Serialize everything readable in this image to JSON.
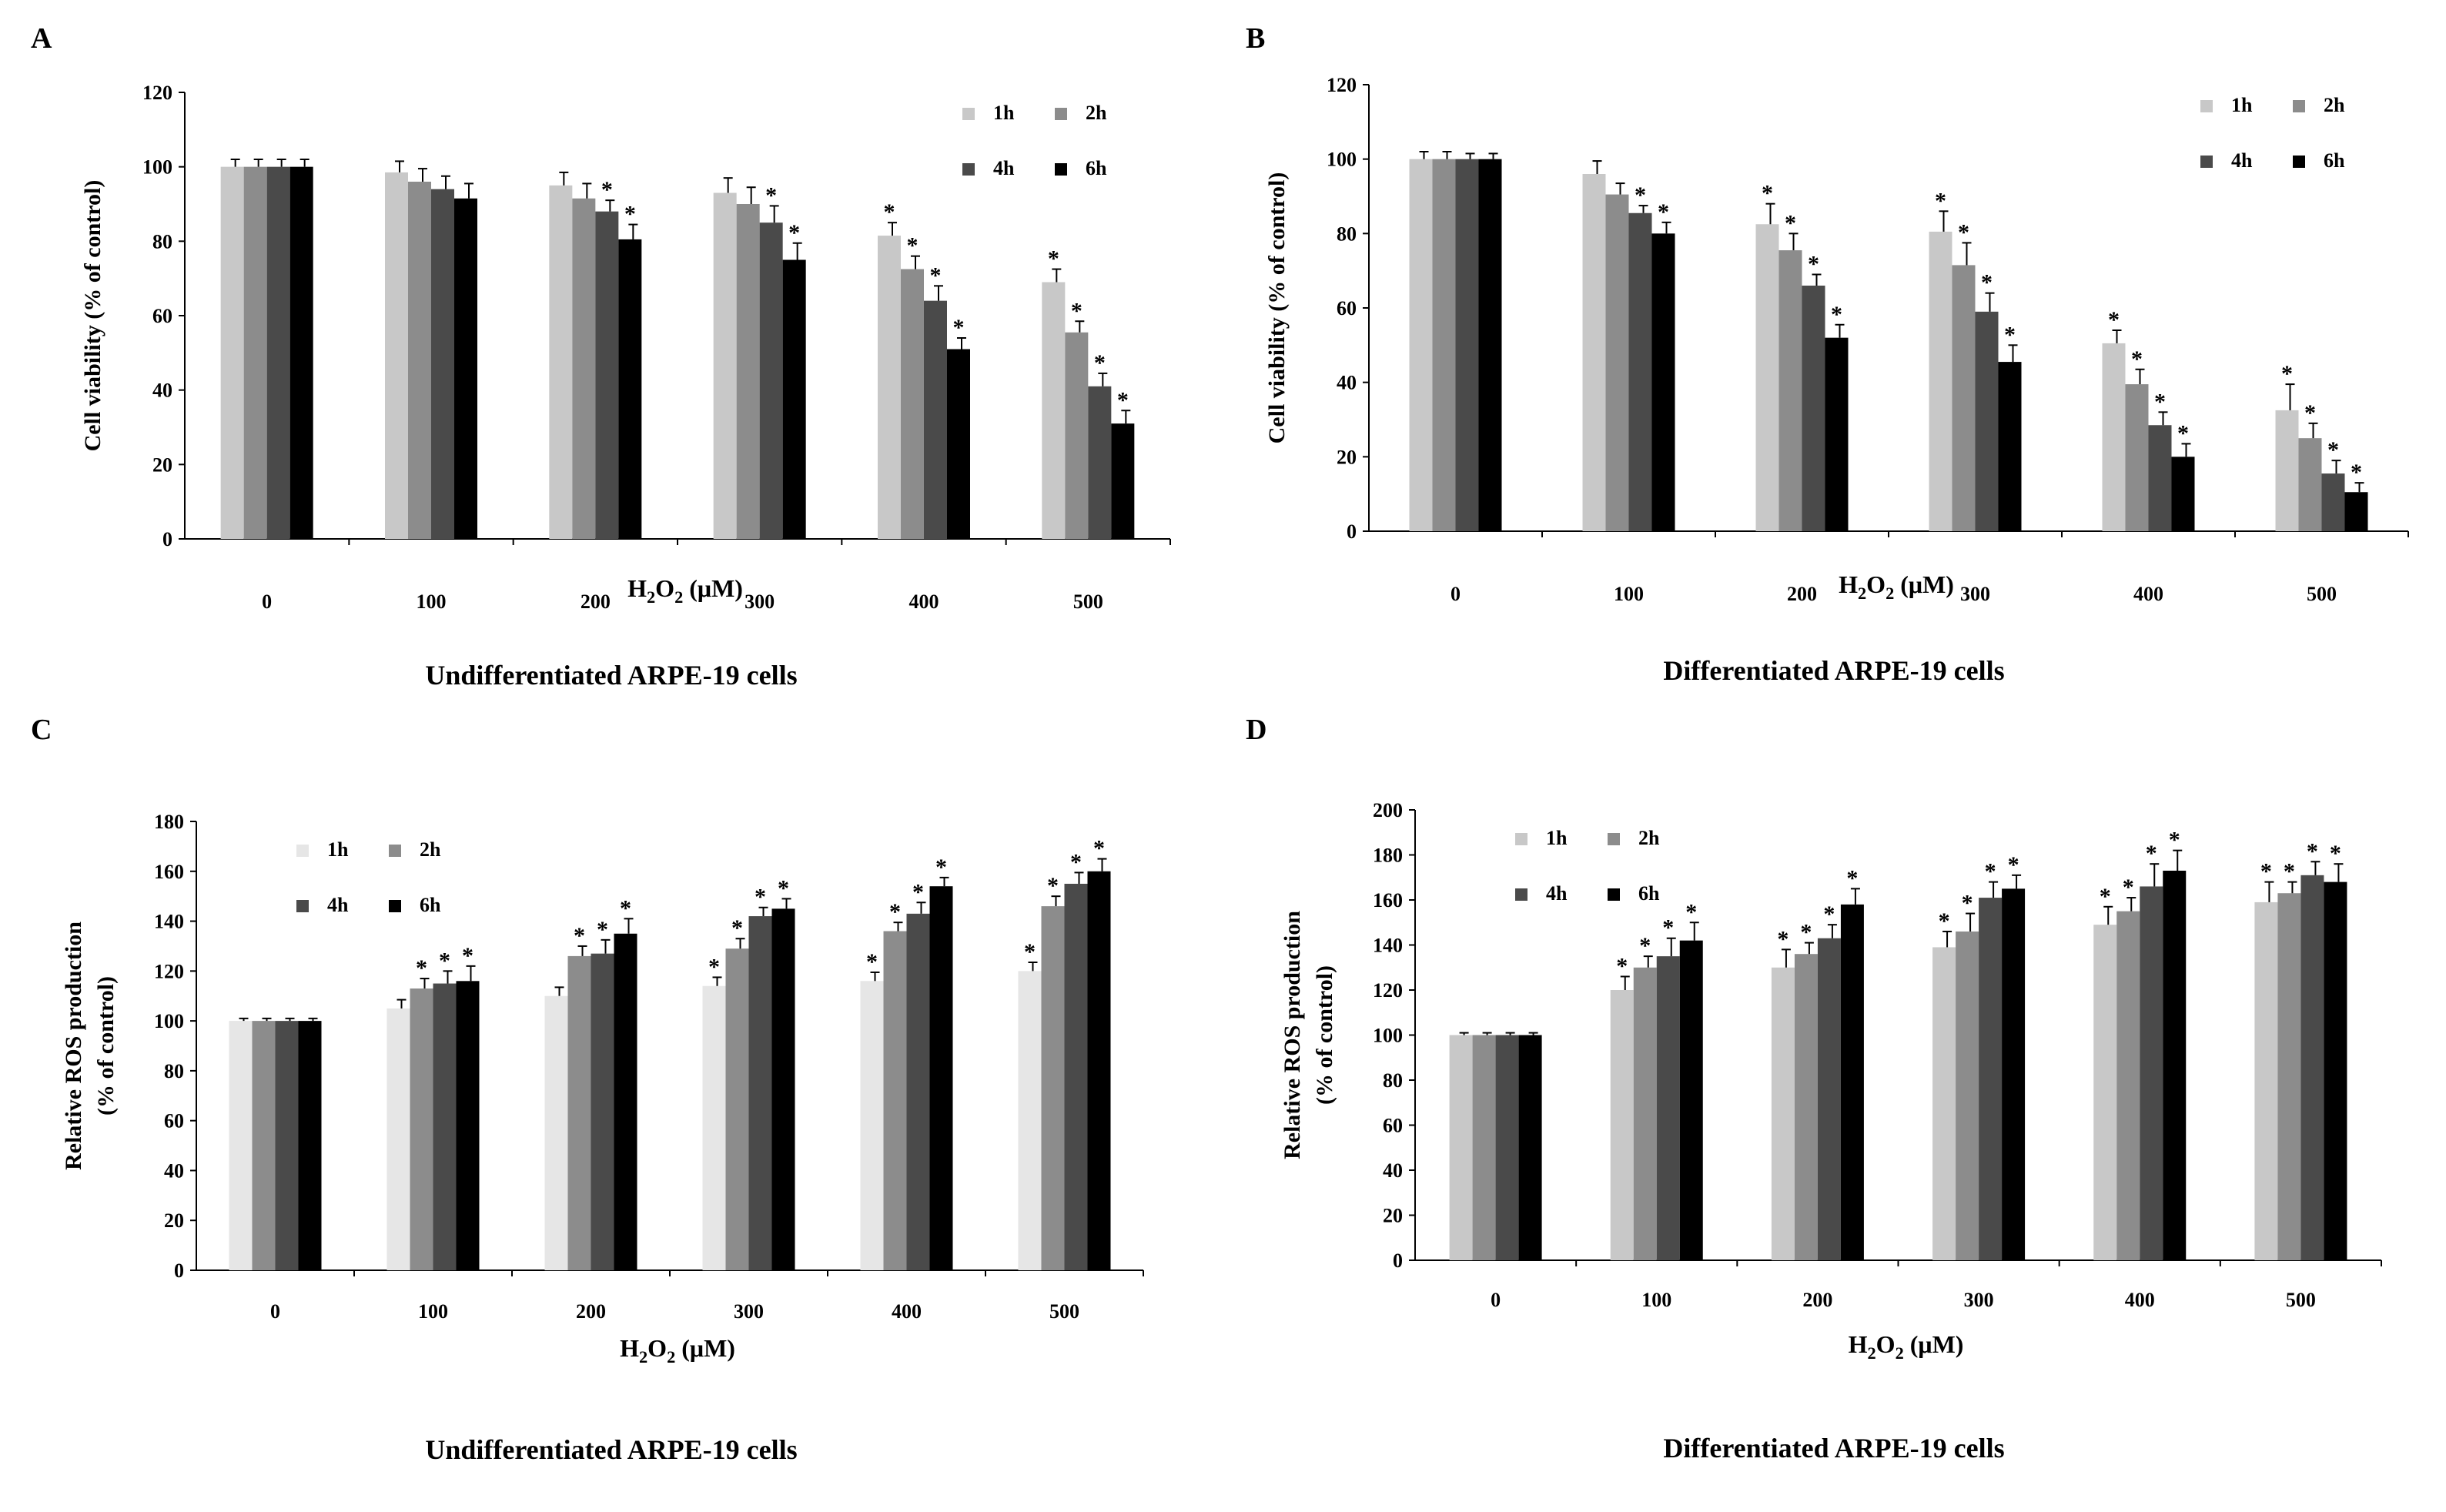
{
  "chart_data": [
    {
      "panel_label": "A",
      "type": "bar",
      "caption": "Undifferentiated ARPE-19 cells",
      "ylabel": [
        "Cell viability (% of control)"
      ],
      "xlabel": "H2O2 (μM)",
      "ylim": [
        0,
        120
      ],
      "yticks": [
        0,
        20,
        40,
        60,
        80,
        100,
        120
      ],
      "categories": [
        "0",
        "100",
        "200",
        "300",
        "400",
        "500"
      ],
      "legend_placement": "top-right",
      "grid": false,
      "series": [
        {
          "name": "1h",
          "color": "#c8c8c8",
          "values": [
            100,
            98.5,
            95,
            93,
            81.5,
            69
          ],
          "errors": [
            2,
            3,
            3.5,
            4,
            3.5,
            3.5
          ],
          "significant": [
            false,
            false,
            false,
            false,
            true,
            true
          ]
        },
        {
          "name": "2h",
          "color": "#8c8c8c",
          "values": [
            100,
            96,
            91.5,
            90,
            72.5,
            55.5
          ],
          "errors": [
            2,
            3.5,
            4,
            4.5,
            3.5,
            3
          ],
          "significant": [
            false,
            false,
            false,
            false,
            true,
            true
          ]
        },
        {
          "name": "4h",
          "color": "#4a4a4a",
          "values": [
            100,
            94,
            88,
            85,
            64,
            41
          ],
          "errors": [
            2,
            3.5,
            3,
            4.5,
            4,
            3.5
          ],
          "significant": [
            false,
            false,
            true,
            true,
            true,
            true
          ]
        },
        {
          "name": "6h",
          "color": "#000000",
          "values": [
            100,
            91.5,
            80.5,
            75,
            51,
            31
          ],
          "errors": [
            2,
            4,
            4,
            4.5,
            3,
            3.5
          ],
          "significant": [
            false,
            false,
            true,
            true,
            true,
            true
          ]
        }
      ]
    },
    {
      "panel_label": "B",
      "type": "bar",
      "caption": "Differentiated ARPE-19 cells",
      "ylabel": [
        "Cell viability (% of control)"
      ],
      "xlabel": "H2O2 (μM)",
      "ylim": [
        0,
        120
      ],
      "yticks": [
        0,
        20,
        40,
        60,
        80,
        100,
        120
      ],
      "categories": [
        "0",
        "100",
        "200",
        "300",
        "400",
        "500"
      ],
      "legend_placement": "top-right",
      "grid": false,
      "series": [
        {
          "name": "1h",
          "color": "#c8c8c8",
          "values": [
            100,
            96,
            82.5,
            80.5,
            50.5,
            32.5
          ],
          "errors": [
            2,
            3.5,
            5.5,
            5.5,
            3.5,
            7
          ],
          "significant": [
            false,
            false,
            true,
            true,
            true,
            true
          ]
        },
        {
          "name": "2h",
          "color": "#8c8c8c",
          "values": [
            100,
            90.5,
            75.5,
            71.5,
            39.5,
            25
          ],
          "errors": [
            2,
            3,
            4.5,
            6,
            4,
            4
          ],
          "significant": [
            false,
            false,
            true,
            true,
            true,
            true
          ]
        },
        {
          "name": "4h",
          "color": "#4a4a4a",
          "values": [
            100,
            85.5,
            66,
            59,
            28.5,
            15.5
          ],
          "errors": [
            1.5,
            2,
            3,
            5,
            3.5,
            3.5
          ],
          "significant": [
            false,
            true,
            true,
            true,
            true,
            true
          ]
        },
        {
          "name": "6h",
          "color": "#000000",
          "values": [
            100,
            80,
            52,
            45.5,
            20,
            10.5
          ],
          "errors": [
            1.5,
            3,
            3.5,
            4.5,
            3.5,
            2.5
          ],
          "significant": [
            false,
            true,
            true,
            true,
            true,
            true
          ]
        }
      ]
    },
    {
      "panel_label": "C",
      "type": "bar",
      "caption": "Undifferentiated ARPE-19 cells",
      "ylabel": [
        "Relative ROS production",
        "(% of control)"
      ],
      "xlabel": "H2O2 (μM)",
      "ylim": [
        0,
        180
      ],
      "yticks": [
        0,
        20,
        40,
        60,
        80,
        100,
        120,
        140,
        160,
        180
      ],
      "categories": [
        "0",
        "100",
        "200",
        "300",
        "400",
        "500"
      ],
      "legend_placement": "top-left",
      "grid": false,
      "series": [
        {
          "name": "1h",
          "color": "#e6e6e6",
          "values": [
            100,
            105,
            110,
            114,
            116,
            120
          ],
          "errors": [
            1,
            3.5,
            3.5,
            3.5,
            3.5,
            3.5
          ],
          "significant": [
            false,
            false,
            false,
            true,
            true,
            true
          ]
        },
        {
          "name": "2h",
          "color": "#8c8c8c",
          "values": [
            100,
            113,
            126,
            129,
            136,
            146
          ],
          "errors": [
            1,
            4,
            4,
            4,
            3.5,
            4
          ],
          "significant": [
            false,
            true,
            true,
            true,
            true,
            true
          ]
        },
        {
          "name": "4h",
          "color": "#4a4a4a",
          "values": [
            100,
            115,
            127,
            142,
            143,
            155
          ],
          "errors": [
            1,
            5,
            5.5,
            3.5,
            4.5,
            4.5
          ],
          "significant": [
            false,
            true,
            true,
            true,
            true,
            true
          ]
        },
        {
          "name": "6h",
          "color": "#000000",
          "values": [
            100,
            116,
            135,
            145,
            154,
            160
          ],
          "errors": [
            1,
            6,
            6,
            4,
            3.5,
            5
          ],
          "significant": [
            false,
            true,
            true,
            true,
            true,
            true
          ]
        }
      ]
    },
    {
      "panel_label": "D",
      "type": "bar",
      "caption": "Differentiated ARPE-19 cells",
      "ylabel": [
        "Relative ROS production",
        "(% of control)"
      ],
      "xlabel": "H2O2 (μM)",
      "ylim": [
        0,
        200
      ],
      "yticks": [
        0,
        20,
        40,
        60,
        80,
        100,
        120,
        140,
        160,
        180,
        200
      ],
      "categories": [
        "0",
        "100",
        "200",
        "300",
        "400",
        "500"
      ],
      "legend_placement": "top-left",
      "grid": false,
      "series": [
        {
          "name": "1h",
          "color": "#c8c8c8",
          "values": [
            100,
            120,
            130,
            139,
            149,
            159
          ],
          "errors": [
            1,
            6,
            8,
            7,
            8,
            9
          ],
          "significant": [
            false,
            true,
            true,
            true,
            true,
            true
          ]
        },
        {
          "name": "2h",
          "color": "#8c8c8c",
          "values": [
            100,
            130,
            136,
            146,
            155,
            163
          ],
          "errors": [
            1,
            5,
            5,
            8,
            6,
            5
          ],
          "significant": [
            false,
            true,
            true,
            true,
            true,
            true
          ]
        },
        {
          "name": "4h",
          "color": "#4a4a4a",
          "values": [
            100,
            135,
            143,
            161,
            166,
            171
          ],
          "errors": [
            1,
            8,
            6,
            7,
            10,
            6
          ],
          "significant": [
            false,
            true,
            true,
            true,
            true,
            true
          ]
        },
        {
          "name": "6h",
          "color": "#000000",
          "values": [
            100,
            142,
            158,
            165,
            173,
            168
          ],
          "errors": [
            1,
            8,
            7,
            6,
            9,
            8
          ],
          "significant": [
            false,
            true,
            true,
            true,
            true,
            true
          ]
        }
      ]
    }
  ]
}
